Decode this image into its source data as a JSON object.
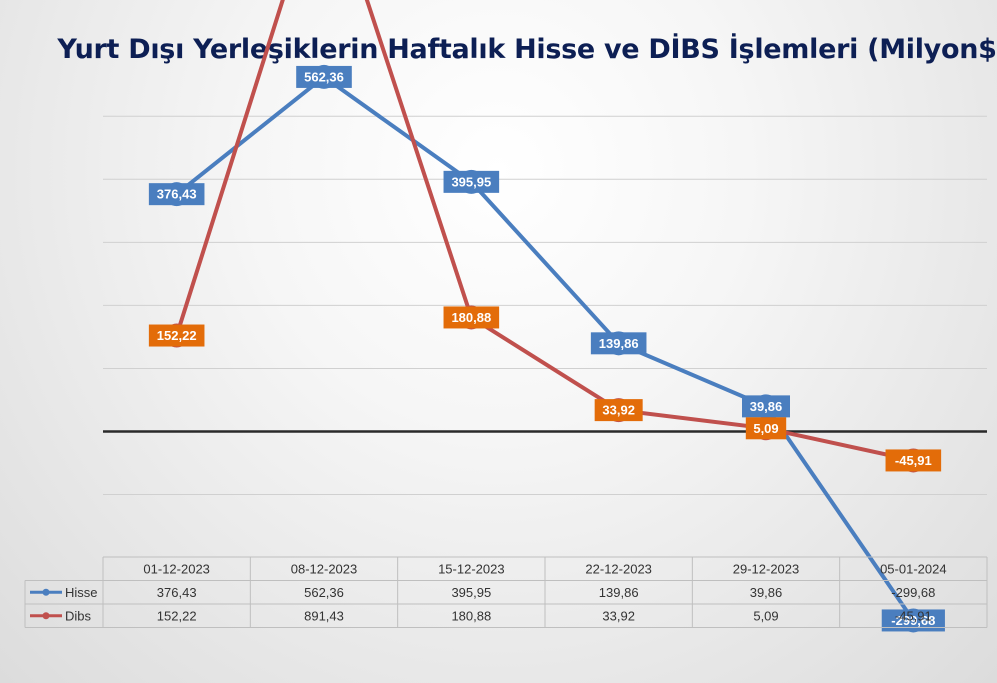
{
  "chart_data": {
    "type": "line",
    "title": "Yurt Dışı Yerleşiklerin Haftalık Hisse ve DİBS İşlemleri (Milyon$)",
    "categories": [
      "01-12-2023",
      "08-12-2023",
      "15-12-2023",
      "22-12-2023",
      "29-12-2023",
      "05-01-2024"
    ],
    "series": [
      {
        "name": "Hisse",
        "color": "#4a7ebf",
        "values": [
          376.43,
          562.36,
          395.95,
          139.86,
          39.86,
          -299.68
        ],
        "labels": [
          "376,43",
          "562,36",
          "395,95",
          "139,86",
          "39,86",
          "-299,68"
        ]
      },
      {
        "name": "Dibs",
        "color": "#c0504d",
        "label_color": "#e36c09",
        "values": [
          152.22,
          891.43,
          180.88,
          33.92,
          5.09,
          -45.91
        ],
        "labels": [
          "152,22",
          "891,43",
          "180,88",
          "33,92",
          "5,09",
          "-45,91"
        ]
      }
    ],
    "ylim": [
      -400,
      1000
    ],
    "grid": true,
    "data_table": true,
    "legend": "data-table"
  }
}
